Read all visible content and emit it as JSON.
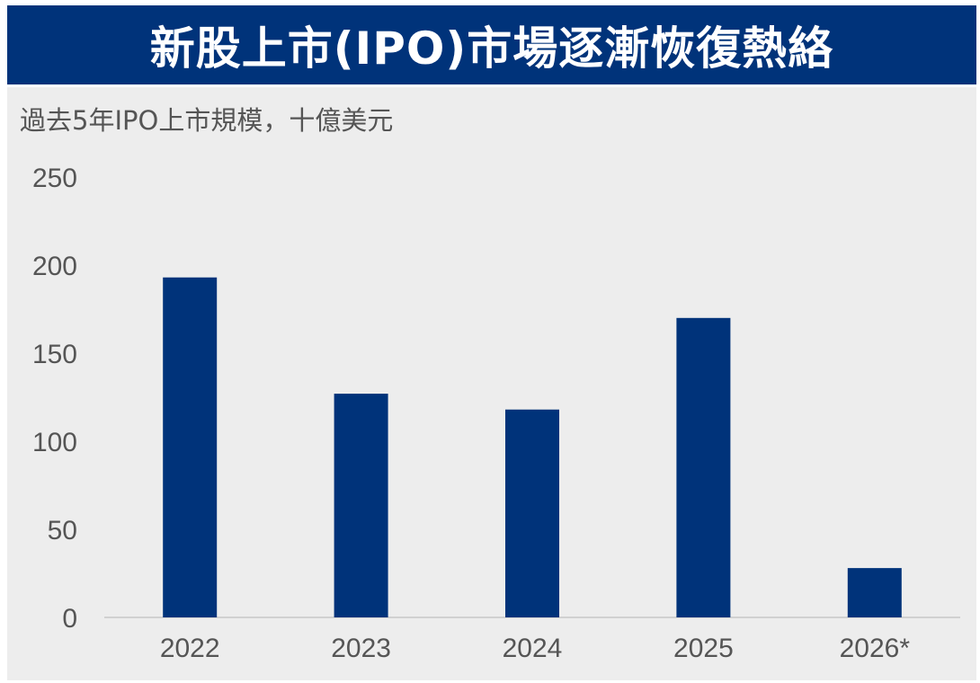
{
  "header": {
    "title": "新股上市(IPO)市場逐漸恢復熱絡"
  },
  "chart_data": {
    "type": "bar",
    "title": "新股上市(IPO)市場逐漸恢復熱絡",
    "subtitle": "過去5年IPO上市規模，十億美元",
    "categories": [
      "2022",
      "2023",
      "2024",
      "2025",
      "2026*"
    ],
    "values": [
      193,
      127,
      118,
      170,
      28
    ],
    "ylim": [
      0,
      250
    ],
    "yticks": [
      0,
      50,
      100,
      150,
      200,
      250
    ],
    "grid": false,
    "legend": "none",
    "colors": {
      "bar": "#00337a",
      "banner": "#00337a",
      "panel": "#ededed",
      "axis_text": "#555555",
      "baseline": "#c8c8c8"
    }
  }
}
